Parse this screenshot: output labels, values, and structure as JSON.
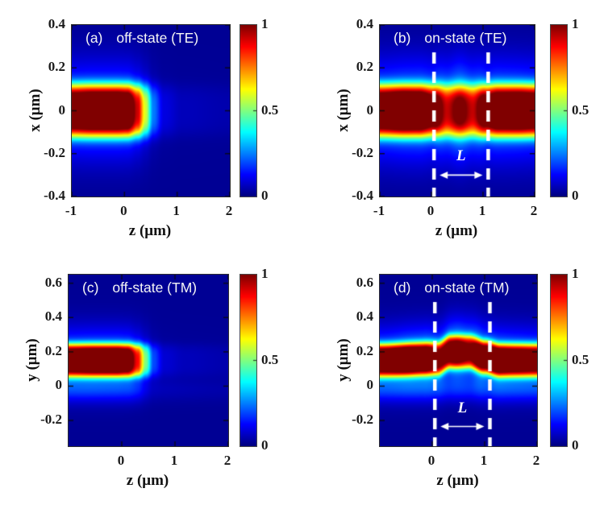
{
  "figure": {
    "background": "#ffffff",
    "frame_color": "#2e2e2e",
    "text_color": "#1a1a1a"
  },
  "chart_data": [
    {
      "type": "heatmap",
      "panel_label": "(a)",
      "title": "off-state (TE)",
      "title_color": "#ffffff",
      "xlabel": "z (μm)",
      "ylabel": "x (μm)",
      "x_range": [
        -1,
        2
      ],
      "y_range": [
        -0.4,
        0.4
      ],
      "x_ticks": [
        -1,
        0,
        1,
        2
      ],
      "y_ticks": [
        0.4,
        0.2,
        0,
        -0.2,
        -0.4
      ],
      "colorbar_range": [
        0,
        1
      ],
      "colorbar_ticks": [
        1,
        0.5,
        0
      ],
      "colormap": "jet",
      "grid": false,
      "field_model": {
        "description": "guided TE mode enters at x=0 from z=-1, cut off near z=0 (off-state)",
        "band_center_pts": [
          [
            -1,
            0
          ],
          [
            2,
            0
          ]
        ],
        "core_width": 0.12,
        "halo_width": 0.2,
        "halo_amp_pts": [
          [
            -1,
            0.26
          ],
          [
            2,
            0.26
          ]
        ],
        "axial_amp_pts": [
          [
            -1,
            0.96
          ],
          [
            -0.6,
            1
          ],
          [
            -0.15,
            1
          ],
          [
            0.05,
            0.97
          ],
          [
            0.25,
            0.72
          ],
          [
            0.4,
            0.45
          ],
          [
            0.55,
            0.18
          ],
          [
            0.75,
            0.06
          ],
          [
            1.1,
            0.03
          ],
          [
            2,
            0.02
          ]
        ],
        "base_level": 0.02
      }
    },
    {
      "type": "heatmap",
      "panel_label": "(b)",
      "title": "on-state (TE)",
      "title_color": "#ffffff",
      "xlabel": "z (μm)",
      "ylabel": "x (μm)",
      "x_range": [
        -1,
        2
      ],
      "y_range": [
        -0.4,
        0.4
      ],
      "x_ticks": [
        -1,
        0,
        1,
        2
      ],
      "y_ticks": [
        0.4,
        0.2,
        0,
        -0.2,
        -0.4
      ],
      "colorbar_range": [
        0,
        1
      ],
      "colorbar_ticks": [
        1,
        0.5,
        0
      ],
      "colormap": "jet",
      "grid": false,
      "annotations": {
        "dashed_lines_z": [
          0.05,
          1.1
        ],
        "length_label": "L",
        "arrow_y": -0.3,
        "color": "#ffffff"
      },
      "field_model": {
        "description": "TE mode transmitted through active section 0<z<1.1 with reduced intensity",
        "band_center_pts": [
          [
            -1,
            0
          ],
          [
            2,
            0
          ]
        ],
        "core_width": 0.12,
        "halo_width": 0.21,
        "halo_amp_pts": [
          [
            -1,
            0.27
          ],
          [
            0,
            0.3
          ],
          [
            0.3,
            0.45
          ],
          [
            0.55,
            0.5
          ],
          [
            0.8,
            0.45
          ],
          [
            1.1,
            0.3
          ],
          [
            2,
            0.27
          ]
        ],
        "axial_amp_pts": [
          [
            -1,
            0.95
          ],
          [
            -0.55,
            1
          ],
          [
            -0.25,
            0.98
          ],
          [
            0.05,
            0.85
          ],
          [
            0.3,
            0.63
          ],
          [
            0.55,
            0.7
          ],
          [
            0.8,
            0.63
          ],
          [
            1.05,
            0.85
          ],
          [
            1.3,
            0.95
          ],
          [
            1.7,
            0.97
          ],
          [
            2,
            0.94
          ]
        ],
        "base_level": 0.02
      }
    },
    {
      "type": "heatmap",
      "panel_label": "(c)",
      "title": "off-state (TM)",
      "title_color": "#ffffff",
      "xlabel": "z (μm)",
      "ylabel": "y (μm)",
      "x_range": [
        -1,
        2
      ],
      "y_range": [
        -0.35,
        0.65
      ],
      "x_ticks": [
        0,
        1,
        2
      ],
      "y_ticks": [
        0.6,
        0.4,
        0.2,
        0,
        -0.2
      ],
      "colorbar_range": [
        0,
        1
      ],
      "colorbar_ticks": [
        1,
        0.5,
        0
      ],
      "colormap": "jet",
      "grid": false,
      "field_model": {
        "description": "guided TM mode at y=0.15 enters from z=-1, cut off near z=0 (off-state)",
        "band_center_pts": [
          [
            -1,
            0.15
          ],
          [
            2,
            0.15
          ]
        ],
        "core_width": 0.095,
        "halo_width": 0.17,
        "halo_amp_pts": [
          [
            -1,
            0.26
          ],
          [
            2,
            0.26
          ]
        ],
        "axial_amp_pts": [
          [
            -1,
            0.96
          ],
          [
            -0.5,
            1
          ],
          [
            -0.1,
            1
          ],
          [
            0.1,
            0.95
          ],
          [
            0.3,
            0.68
          ],
          [
            0.45,
            0.38
          ],
          [
            0.6,
            0.14
          ],
          [
            0.8,
            0.05
          ],
          [
            1.2,
            0.03
          ],
          [
            2,
            0.02
          ]
        ],
        "secondary_band": {
          "center": -0.02,
          "width": 0.07,
          "amp_pts": [
            [
              -1,
              0.1
            ],
            [
              0.2,
              0.09
            ],
            [
              0.6,
              0.03
            ],
            [
              2,
              0.02
            ]
          ]
        },
        "base_level": 0.02
      }
    },
    {
      "type": "heatmap",
      "panel_label": "(d)",
      "title": "on-state (TM)",
      "title_color": "#ffffff",
      "xlabel": "z (μm)",
      "ylabel": "y (μm)",
      "x_range": [
        -1,
        2
      ],
      "y_range": [
        -0.35,
        0.65
      ],
      "x_ticks": [
        0,
        1,
        2
      ],
      "y_ticks": [
        0.6,
        0.4,
        0.2,
        0,
        -0.2
      ],
      "colorbar_range": [
        0,
        1
      ],
      "colorbar_ticks": [
        1,
        0.5,
        0
      ],
      "colormap": "jet",
      "grid": false,
      "annotations": {
        "dashed_lines_z": [
          0.05,
          1.1
        ],
        "length_label": "L",
        "arrow_y": -0.235,
        "color": "#ffffff"
      },
      "field_model": {
        "description": "TM mode transmitted through active section 0<z<1.1, slightly lifted and dimmed",
        "band_center_pts": [
          [
            -1,
            0.15
          ],
          [
            0.1,
            0.16
          ],
          [
            0.35,
            0.2
          ],
          [
            0.7,
            0.2
          ],
          [
            1.0,
            0.17
          ],
          [
            1.3,
            0.15
          ],
          [
            2,
            0.15
          ]
        ],
        "core_width": 0.095,
        "halo_width": 0.17,
        "halo_amp_pts": [
          [
            -1,
            0.27
          ],
          [
            0.2,
            0.35
          ],
          [
            0.5,
            0.42
          ],
          [
            0.8,
            0.4
          ],
          [
            1.1,
            0.3
          ],
          [
            2,
            0.27
          ]
        ],
        "axial_amp_pts": [
          [
            -1,
            0.95
          ],
          [
            -0.5,
            1
          ],
          [
            -0.15,
            0.95
          ],
          [
            0.15,
            0.78
          ],
          [
            0.45,
            0.82
          ],
          [
            0.7,
            0.74
          ],
          [
            0.95,
            0.88
          ],
          [
            1.2,
            0.97
          ],
          [
            1.6,
            0.93
          ],
          [
            2,
            0.9
          ]
        ],
        "secondary_band": {
          "center": -0.02,
          "width": 0.07,
          "amp_pts": [
            [
              -1,
              0.1
            ],
            [
              2,
              0.1
            ]
          ]
        },
        "base_level": 0.02
      }
    }
  ]
}
